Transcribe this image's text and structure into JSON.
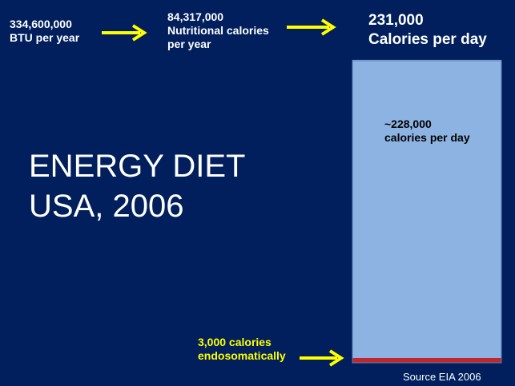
{
  "title": {
    "line1": "ENERGY DIET",
    "line2": "USA, 2006"
  },
  "labels": {
    "btu": {
      "value": "334,600,000",
      "unit": "BTU per year"
    },
    "nutritional": {
      "value": "84,317,000",
      "unit_line1": "Nutritional calories",
      "unit_line2": "per year"
    },
    "daily": {
      "value": "231,000",
      "unit": "Calories per day"
    },
    "inner": {
      "value": "~228,000",
      "unit": "calories per day"
    },
    "endo": {
      "value": "3,000 calories",
      "unit": "endosomatically"
    }
  },
  "source": "Source EIA 2006",
  "colors": {
    "background": "#001f5c",
    "bar_main": "#8db3e2",
    "bar_endo": "#c0272d",
    "arrow": "#ffff00"
  },
  "chart_data": {
    "type": "bar",
    "title": "",
    "categories": [
      "Calories per day"
    ],
    "total": 231000,
    "series": [
      {
        "name": "",
        "values": [
          3000
        ]
      },
      {
        "name": "",
        "values": [
          228000
        ]
      }
    ],
    "ylim": [
      0,
      231000
    ],
    "grid": false,
    "legend": "none"
  }
}
